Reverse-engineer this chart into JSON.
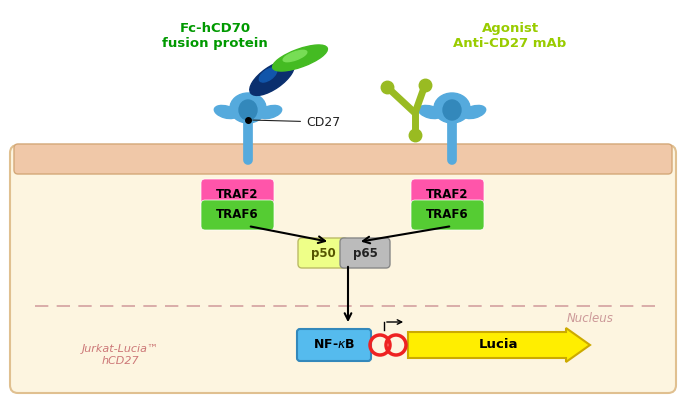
{
  "bg_color": "#ffffff",
  "cell_fill": "#fdf5e0",
  "cell_border": "#e0c090",
  "membrane_color": "#f0c8a8",
  "membrane_border": "#d4a878",
  "nucleus_border_color": "#d4a0a0",
  "left_label": "Fc-hCD70\nfusion protein",
  "left_label_color": "#009900",
  "right_label": "Agonist\nAnti-CD27 mAb",
  "right_label_color": "#99cc00",
  "traf2_color": "#ff55aa",
  "traf6_color": "#55cc33",
  "p50_color": "#eeff88",
  "p65_color": "#bbbbbb",
  "nfkb_color": "#55bbee",
  "lucia_color": "#ffee00",
  "cd27_receptor_color": "#55aadd",
  "fusion_blue": "#0a2f6e",
  "fusion_green": "#44bb22",
  "antibody_color": "#99bb22",
  "nucleus_label": "Nucleus",
  "jurkat_label": "Jurkat-Lucia™\nhCD27",
  "jurkat_color": "#cc7777"
}
